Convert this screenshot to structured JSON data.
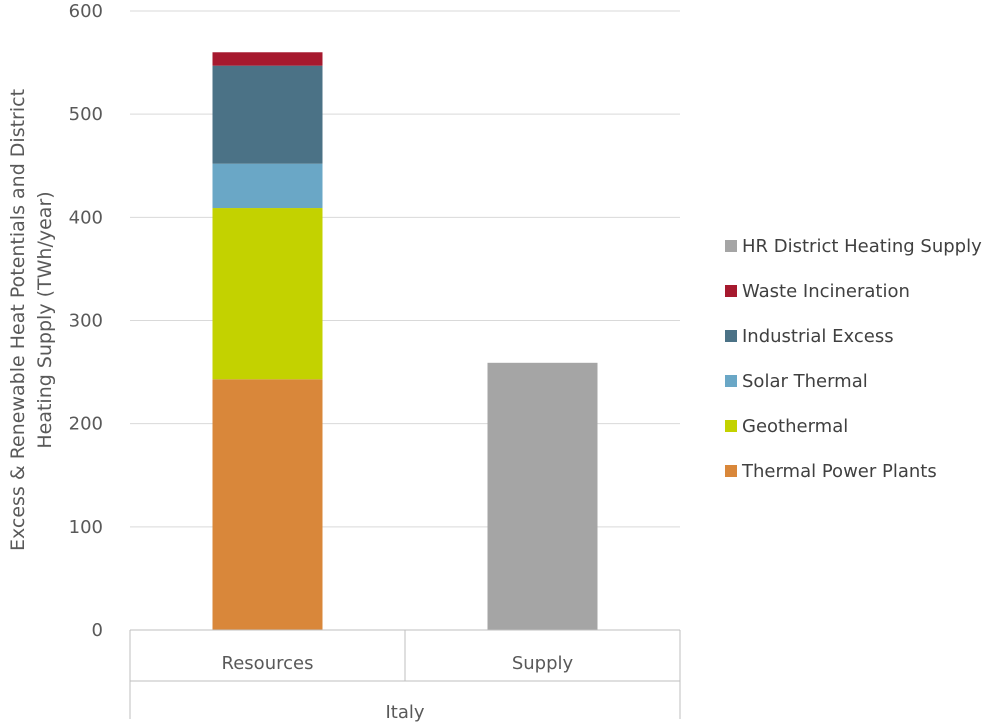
{
  "chart_data": {
    "type": "bar",
    "stacked": true,
    "group_label": "Italy",
    "categories": [
      "Resources",
      "Supply"
    ],
    "ylabel_lines": [
      "Excess & Renewable Heat Potentials and District",
      "Heating Supply (TWh/year)"
    ],
    "ylim": [
      0,
      600
    ],
    "yticks": [
      0,
      100,
      200,
      300,
      400,
      500,
      600
    ],
    "grid": true,
    "legend_position": "right",
    "series": [
      {
        "name": "Thermal Power Plants",
        "color": "#d9873a",
        "values": [
          243,
          0
        ]
      },
      {
        "name": "Geothermal",
        "color": "#c3d200",
        "values": [
          166,
          0
        ]
      },
      {
        "name": "Solar Thermal",
        "color": "#6aa7c6",
        "values": [
          43,
          0
        ]
      },
      {
        "name": "Industrial Excess",
        "color": "#4b7286",
        "values": [
          95,
          0
        ]
      },
      {
        "name": "Waste Incineration",
        "color": "#a6192e",
        "values": [
          13,
          0
        ]
      },
      {
        "name": "HR District Heating Supply",
        "color": "#a5a5a5",
        "values": [
          0,
          259
        ]
      }
    ]
  }
}
